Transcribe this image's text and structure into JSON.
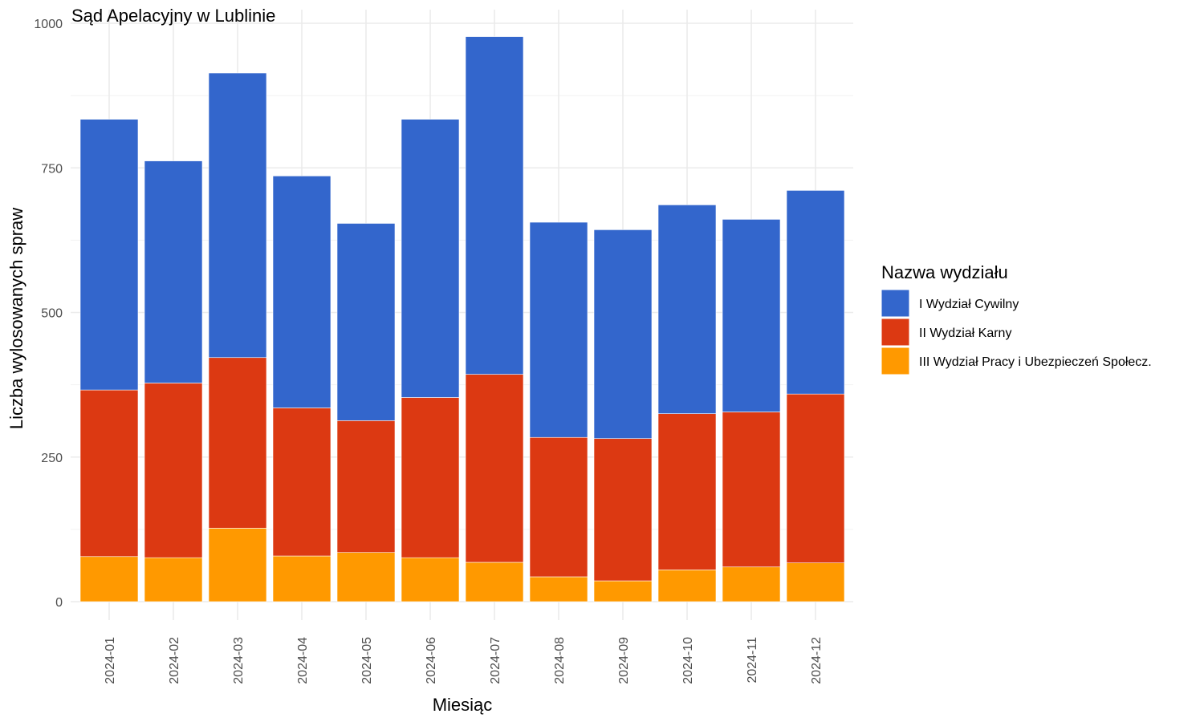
{
  "chart_data": {
    "type": "bar",
    "stacked": true,
    "title": "Sąd Apelacyjny w Lublinie",
    "xlabel": "Miesiąc",
    "ylabel": "Liczba wylosowanych spraw",
    "ylim": [
      0,
      1000
    ],
    "yticks": [
      "0",
      "250",
      "500",
      "750",
      "1000"
    ],
    "grid": true,
    "legend_position": "right",
    "legend_title": "Nazwa wydziału",
    "categories": [
      "2024-01",
      "2024-02",
      "2024-03",
      "2024-04",
      "2024-05",
      "2024-06",
      "2024-07",
      "2024-08",
      "2024-09",
      "2024-10",
      "2024-11",
      "2024-12"
    ],
    "series": [
      {
        "name": "III Wydział Pracy i Ubezpieczeń Społecz.",
        "color": "#FF9900",
        "values": [
          78,
          76,
          127,
          79,
          85,
          76,
          68,
          43,
          36,
          55,
          60,
          67
        ]
      },
      {
        "name": "II Wydział Karny",
        "color": "#DC3912",
        "values": [
          288,
          302,
          295,
          256,
          228,
          277,
          325,
          241,
          246,
          270,
          268,
          292
        ]
      },
      {
        "name": "I Wydział Cywilny",
        "color": "#3366CC",
        "values": [
          468,
          384,
          492,
          401,
          341,
          481,
          584,
          372,
          361,
          361,
          333,
          352
        ]
      }
    ],
    "legend_order": [
      "I Wydział Cywilny",
      "II Wydział Karny",
      "III Wydział Pracy i Ubezpieczeń Społecz."
    ]
  }
}
